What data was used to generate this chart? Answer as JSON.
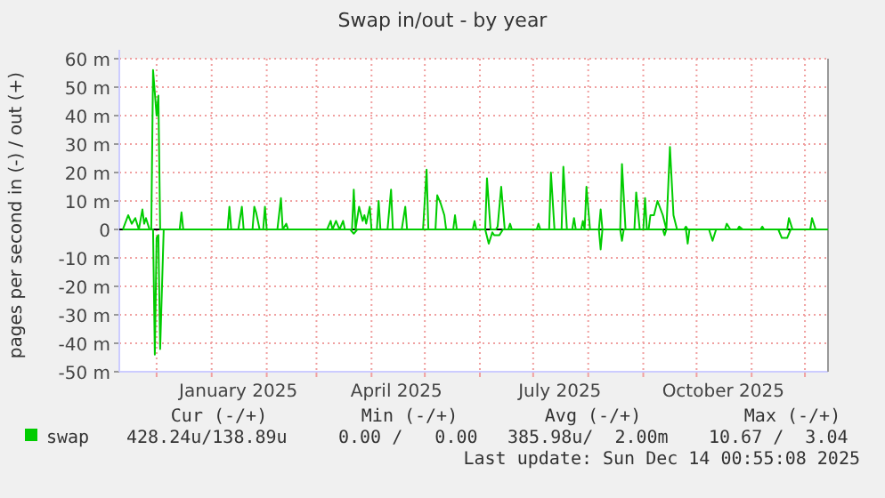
{
  "chart_data": {
    "type": "line",
    "title": "Swap in/out - by year",
    "ylabel": "pages per second in (-) / out (+)",
    "xlim": [
      "2024-11-10",
      "2025-12-14"
    ],
    "xticks": [
      {
        "value": "2024-12-01",
        "label": null
      },
      {
        "value": "2025-01-01",
        "label": null
      },
      {
        "value": "2025-01-16",
        "label": "January 2025"
      },
      {
        "value": "2025-02-01",
        "label": null
      },
      {
        "value": "2025-03-01",
        "label": null
      },
      {
        "value": "2025-04-01",
        "label": null
      },
      {
        "value": "2025-04-15",
        "label": "April 2025"
      },
      {
        "value": "2025-05-01",
        "label": null
      },
      {
        "value": "2025-06-01",
        "label": null
      },
      {
        "value": "2025-07-01",
        "label": null
      },
      {
        "value": "2025-07-16",
        "label": "July 2025"
      },
      {
        "value": "2025-08-01",
        "label": null
      },
      {
        "value": "2025-09-01",
        "label": null
      },
      {
        "value": "2025-10-01",
        "label": null
      },
      {
        "value": "2025-10-16",
        "label": "October 2025"
      },
      {
        "value": "2025-11-01",
        "label": null
      },
      {
        "value": "2025-12-01",
        "label": null
      }
    ],
    "ylim": [
      -50,
      60
    ],
    "yticks": [
      {
        "value": -50,
        "label": "-50 m"
      },
      {
        "value": -40,
        "label": "-40 m"
      },
      {
        "value": -30,
        "label": "-30 m"
      },
      {
        "value": -20,
        "label": "-20 m"
      },
      {
        "value": -10,
        "label": "-10 m"
      },
      0,
      {
        "value": 10,
        "label": "10 m"
      },
      {
        "value": 20,
        "label": "20 m"
      },
      {
        "value": 30,
        "label": "30 m"
      },
      {
        "value": 40,
        "label": "40 m"
      },
      {
        "value": 50,
        "label": "50 m"
      },
      {
        "value": 60,
        "label": "60 m"
      }
    ],
    "grid": true,
    "legend": "bottom",
    "series": [
      {
        "name": "swap",
        "color": "#00cc00",
        "x": [
          "2024-11-12",
          "2024-11-15",
          "2024-11-17",
          "2024-11-19",
          "2024-11-21",
          "2024-11-23",
          "2024-11-24",
          "2024-11-25",
          "2024-11-27",
          "2024-11-28",
          "2024-11-29",
          "2024-12-01",
          "2024-12-02",
          "2024-12-03",
          "2024-12-14",
          "2024-12-15",
          "2024-12-16",
          "2025-01-10",
          "2025-01-11",
          "2025-01-12",
          "2025-01-16",
          "2025-01-18",
          "2025-01-19",
          "2025-01-24",
          "2025-01-25",
          "2025-01-26",
          "2025-01-28",
          "2025-01-30",
          "2025-01-31",
          "2025-02-01",
          "2025-02-07",
          "2025-02-09",
          "2025-02-10",
          "2025-02-12",
          "2025-02-13",
          "2025-03-07",
          "2025-03-09",
          "2025-03-10",
          "2025-03-12",
          "2025-03-14",
          "2025-03-16",
          "2025-03-17",
          "2025-03-21",
          "2025-03-22",
          "2025-03-23",
          "2025-03-25",
          "2025-03-27",
          "2025-03-28",
          "2025-03-29",
          "2025-03-31",
          "2025-04-01",
          "2025-04-04",
          "2025-04-05",
          "2025-04-06",
          "2025-04-10",
          "2025-04-12",
          "2025-04-13",
          "2025-04-18",
          "2025-04-20",
          "2025-04-21",
          "2025-04-30",
          "2025-05-02",
          "2025-05-03",
          "2025-05-07",
          "2025-05-08",
          "2025-05-10",
          "2025-05-12",
          "2025-05-13",
          "2025-05-17",
          "2025-05-18",
          "2025-05-19",
          "2025-05-28",
          "2025-05-29",
          "2025-05-30",
          "2025-06-04",
          "2025-06-05",
          "2025-06-07",
          "2025-06-10",
          "2025-06-11",
          "2025-06-13",
          "2025-06-15",
          "2025-06-17",
          "2025-06-18",
          "2025-06-19",
          "2025-07-03",
          "2025-07-04",
          "2025-07-05",
          "2025-07-10",
          "2025-07-11",
          "2025-07-13",
          "2025-07-17",
          "2025-07-18",
          "2025-07-20",
          "2025-07-23",
          "2025-07-24",
          "2025-07-25",
          "2025-07-28",
          "2025-07-29",
          "2025-07-30",
          "2025-07-31",
          "2025-08-02",
          "2025-08-07",
          "2025-08-08",
          "2025-08-09",
          "2025-08-19",
          "2025-08-20",
          "2025-08-22",
          "2025-08-27",
          "2025-08-28",
          "2025-08-30",
          "2025-09-01",
          "2025-09-02",
          "2025-09-03",
          "2025-09-04",
          "2025-09-05",
          "2025-09-07",
          "2025-09-09",
          "2025-09-12",
          "2025-09-14",
          "2025-09-16",
          "2025-09-18",
          "2025-09-20",
          "2025-09-24",
          "2025-09-25",
          "2025-09-26",
          "2025-10-17",
          "2025-10-18",
          "2025-10-20",
          "2025-10-24",
          "2025-10-25",
          "2025-10-27",
          "2025-11-06",
          "2025-11-07",
          "2025-11-08",
          "2025-11-21",
          "2025-11-22",
          "2025-11-24",
          "2025-12-04",
          "2025-12-05",
          "2025-12-07",
          "2025-12-14"
        ],
        "values": [
          0,
          5,
          2,
          4,
          0,
          7,
          2,
          4,
          0,
          0,
          56,
          40,
          47,
          0,
          0,
          6,
          0,
          0,
          8,
          0,
          0,
          8,
          0,
          0,
          8,
          6,
          0,
          0,
          8,
          0,
          0,
          11,
          0,
          2,
          0,
          0,
          3,
          0,
          3,
          0,
          3,
          0,
          0,
          14,
          0,
          8,
          3,
          5,
          2,
          8,
          0,
          0,
          10,
          0,
          0,
          14,
          0,
          0,
          8,
          0,
          0,
          21,
          0,
          0,
          12,
          9,
          5,
          0,
          0,
          5,
          0,
          0,
          3,
          0,
          0,
          18,
          0,
          0,
          1,
          15,
          0,
          0,
          2,
          0,
          0,
          2,
          0,
          0,
          20,
          0,
          0,
          22,
          0,
          0,
          4,
          0,
          0,
          3,
          0,
          15,
          0,
          0,
          7,
          0,
          0,
          23,
          0,
          0,
          13,
          0,
          0,
          11,
          0,
          0,
          5,
          5,
          10,
          5,
          0,
          29,
          5,
          0,
          0,
          1,
          0,
          0,
          2,
          0,
          0,
          1,
          0,
          0,
          1,
          0,
          0,
          4,
          0,
          0,
          4,
          0,
          0
        ]
      },
      {
        "color": "#00cc00",
        "x": [
          "2024-11-12",
          "2024-11-29",
          "2024-11-30",
          "2024-12-01",
          "2024-12-02",
          "2024-12-03",
          "2024-12-05",
          "2025-03-20",
          "2025-03-22",
          "2025-03-24",
          "2025-06-04",
          "2025-06-06",
          "2025-06-08",
          "2025-06-09",
          "2025-06-12",
          "2025-06-14",
          "2025-08-07",
          "2025-08-08",
          "2025-08-09",
          "2025-08-19",
          "2025-08-20",
          "2025-08-21",
          "2025-09-12",
          "2025-09-13",
          "2025-09-14",
          "2025-09-25",
          "2025-09-26",
          "2025-09-27",
          "2025-10-08",
          "2025-10-10",
          "2025-10-12",
          "2025-11-16",
          "2025-11-18",
          "2025-11-21",
          "2025-11-23",
          "2025-12-14"
        ],
        "values": [
          0,
          0,
          -44,
          -3,
          -2,
          -42,
          0,
          0,
          -1.5,
          0,
          0,
          -5,
          -1,
          -2,
          -2,
          0,
          0,
          -7,
          0,
          0,
          -4,
          0,
          0,
          -2,
          0,
          0,
          -5,
          0,
          0,
          -4,
          0,
          0,
          -3,
          -3,
          0,
          0
        ]
      }
    ],
    "annotations": [
      "Cur (-/+)",
      "Min (-/+)",
      "Avg (-/+)",
      "Max (-/+)",
      "428.24u/138.89u",
      "0.00 /   0.00",
      "385.98u/  2.00m",
      "10.67 /  3.04",
      "Last update: Sun Dec 14 00:55:08 2025"
    ]
  }
}
